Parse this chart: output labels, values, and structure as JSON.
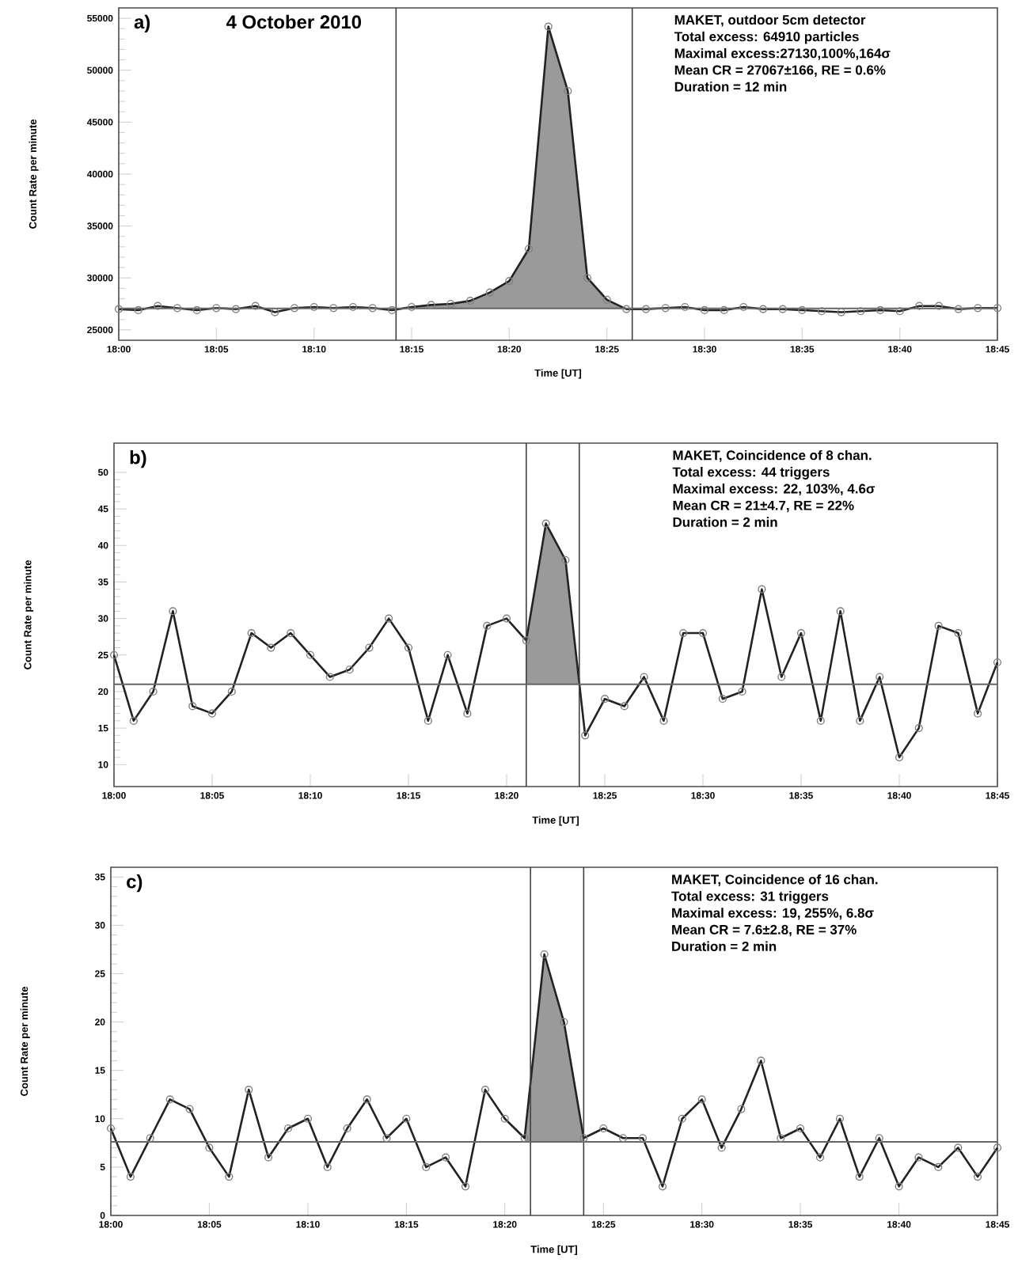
{
  "chart_data": [
    {
      "type": "line",
      "title": "a)",
      "subtitle": "4 October 2010",
      "xlabel": "Time [UT]",
      "ylabel": "Count Rate per minute",
      "annotations": [
        "MAKET, outdoor 5cm detector",
        "Total excess: 64910 particles",
        "Maximal excess:27130,100%,164σ",
        "Mean CR = 27067±166, RE = 0.6%",
        "Duration = 12 min"
      ],
      "x": [
        18,
        18.0167,
        18.0333,
        18.05,
        18.0667,
        18.0833,
        18.1,
        18.1167,
        18.1333,
        18.15,
        18.1667,
        18.1833,
        18.2,
        18.2167,
        18.2333,
        18.25,
        18.2667,
        18.2833,
        18.3,
        18.3167,
        18.3333,
        18.35,
        18.3667,
        18.3833,
        18.4,
        18.4167,
        18.4333,
        18.45,
        18.4667,
        18.4833,
        18.5,
        18.5167,
        18.5333,
        18.55,
        18.5667,
        18.5833,
        18.6,
        18.6167,
        18.6333,
        18.65,
        18.6667,
        18.6833,
        18.7,
        18.7167,
        18.7333,
        18.75
      ],
      "series": [
        {
          "type": "area",
          "color": "#9a9a9a",
          "x": [
            18.25,
            18.2667,
            18.2833,
            18.3,
            18.3167,
            18.3333,
            18.35,
            18.3667,
            18.3833,
            18.4,
            18.4167,
            18.4333
          ],
          "values": [
            27200,
            27400,
            27500,
            27800,
            28600,
            29700,
            32800,
            54200,
            48000,
            30000,
            27900,
            27000
          ]
        },
        {
          "color": "#222222",
          "values": [
            27000,
            26900,
            27300,
            27100,
            26900,
            27100,
            27000,
            27300,
            26700,
            27100,
            27200,
            27100,
            27200,
            27100,
            26900,
            27200,
            27400,
            27500,
            27800,
            28600,
            29700,
            32800,
            54200,
            48000,
            30000,
            27900,
            27000,
            27000,
            27100,
            27200,
            26900,
            26900,
            27200,
            27000,
            27000,
            26900,
            26800,
            26700,
            26800,
            26900,
            26800,
            27300,
            27300,
            27000,
            27100,
            27100
          ]
        }
      ],
      "xlim": [
        18,
        18.75
      ],
      "ylim": [
        24000,
        56000
      ],
      "xticks": [
        {
          "value": 18,
          "label": "18:00"
        },
        {
          "value": 18.0833,
          "label": "18:05"
        },
        {
          "value": 18.1667,
          "label": "18:10"
        },
        {
          "value": 18.25,
          "label": "18:15"
        },
        {
          "value": 18.3333,
          "label": "18:20"
        },
        {
          "value": 18.4167,
          "label": "18:25"
        },
        {
          "value": 18.5,
          "label": "18:30"
        },
        {
          "value": 18.5833,
          "label": "18:35"
        },
        {
          "value": 18.6667,
          "label": "18:40"
        },
        {
          "value": 18.75,
          "label": "18:45"
        }
      ],
      "yticks": [
        25000,
        30000,
        35000,
        40000,
        45000,
        50000,
        55000
      ],
      "ref_lines": [
        {
          "axis": "x",
          "value": 18.2367
        },
        {
          "axis": "x",
          "value": 18.4383
        },
        {
          "axis": "y",
          "value": 27067
        }
      ],
      "marker": "circle",
      "line_style": "solid"
    },
    {
      "type": "line",
      "title": "b)",
      "xlabel": "Time [UT]",
      "ylabel": "Count Rate per minute",
      "annotations": [
        "MAKET, Coincidence of 8 chan.",
        "Total excess: 44 triggers",
        "Maximal excess: 22, 103%, 4.6σ",
        "Mean CR = 21±4.7, RE = 22%",
        "Duration = 2 min"
      ],
      "x": [
        18,
        18.0167,
        18.0333,
        18.05,
        18.0667,
        18.0833,
        18.1,
        18.1167,
        18.1333,
        18.15,
        18.1667,
        18.1833,
        18.2,
        18.2167,
        18.2333,
        18.25,
        18.2667,
        18.2833,
        18.3,
        18.3167,
        18.3333,
        18.35,
        18.3667,
        18.3833,
        18.4,
        18.4167,
        18.4333,
        18.45,
        18.4667,
        18.4833,
        18.5,
        18.5167,
        18.5333,
        18.55,
        18.5667,
        18.5833,
        18.6,
        18.6167,
        18.6333,
        18.65,
        18.6667,
        18.6833,
        18.7,
        18.7167,
        18.7333,
        18.75
      ],
      "series": [
        {
          "type": "area",
          "color": "#9a9a9a",
          "x": [
            18.35,
            18.3667,
            18.3833,
            18.4
          ],
          "values": [
            27,
            43,
            38,
            14
          ]
        },
        {
          "color": "#222222",
          "values": [
            25,
            16,
            20,
            31,
            18,
            17,
            20,
            28,
            26,
            28,
            25,
            22,
            23,
            26,
            30,
            26,
            16,
            25,
            17,
            29,
            30,
            27,
            43,
            38,
            14,
            19,
            18,
            22,
            16,
            28,
            28,
            19,
            20,
            34,
            22,
            28,
            16,
            31,
            16,
            22,
            11,
            15,
            29,
            28,
            17,
            24
          ]
        }
      ],
      "xlim": [
        18,
        18.75
      ],
      "ylim": [
        7,
        54
      ],
      "xticks": [
        {
          "value": 18,
          "label": "18:00"
        },
        {
          "value": 18.0833,
          "label": "18:05"
        },
        {
          "value": 18.1667,
          "label": "18:10"
        },
        {
          "value": 18.25,
          "label": "18:15"
        },
        {
          "value": 18.3333,
          "label": "18:20"
        },
        {
          "value": 18.4167,
          "label": "18:25"
        },
        {
          "value": 18.5,
          "label": "18:30"
        },
        {
          "value": 18.5833,
          "label": "18:35"
        },
        {
          "value": 18.6667,
          "label": "18:40"
        },
        {
          "value": 18.75,
          "label": "18:45"
        }
      ],
      "yticks": [
        10,
        15,
        20,
        25,
        30,
        35,
        40,
        45,
        50
      ],
      "ref_lines": [
        {
          "axis": "x",
          "value": 18.35
        },
        {
          "axis": "x",
          "value": 18.395
        },
        {
          "axis": "y",
          "value": 21
        }
      ],
      "marker": "circle",
      "line_style": "solid"
    },
    {
      "type": "line",
      "title": "c)",
      "xlabel": "Time [UT]",
      "ylabel": "Count Rate per minute",
      "annotations": [
        "MAKET, Coincidence of 16 chan.",
        "Total excess: 31 triggers",
        "Maximal excess: 19, 255%, 6.8σ",
        "Mean CR = 7.6±2.8, RE = 37%",
        "Duration = 2 min"
      ],
      "x": [
        18,
        18.0167,
        18.0333,
        18.05,
        18.0667,
        18.0833,
        18.1,
        18.1167,
        18.1333,
        18.15,
        18.1667,
        18.1833,
        18.2,
        18.2167,
        18.2333,
        18.25,
        18.2667,
        18.2833,
        18.3,
        18.3167,
        18.3333,
        18.35,
        18.3667,
        18.3833,
        18.4,
        18.4167,
        18.4333,
        18.45,
        18.4667,
        18.4833,
        18.5,
        18.5167,
        18.5333,
        18.55,
        18.5667,
        18.5833,
        18.6,
        18.6167,
        18.6333,
        18.65,
        18.6667,
        18.6833,
        18.7,
        18.7167,
        18.7333,
        18.75
      ],
      "series": [
        {
          "type": "area",
          "color": "#9a9a9a",
          "x": [
            18.35,
            18.3667,
            18.3833,
            18.4
          ],
          "values": [
            8,
            27,
            20,
            8
          ]
        },
        {
          "color": "#222222",
          "values": [
            9,
            4,
            8,
            12,
            11,
            7,
            4,
            13,
            6,
            9,
            10,
            5,
            9,
            12,
            8,
            10,
            5,
            6,
            3,
            13,
            10,
            8,
            27,
            20,
            8,
            9,
            8,
            8,
            3,
            10,
            12,
            7,
            11,
            16,
            8,
            9,
            6,
            10,
            4,
            8,
            3,
            6,
            5,
            7,
            4,
            7
          ]
        }
      ],
      "xlim": [
        18,
        18.75
      ],
      "ylim": [
        0,
        36
      ],
      "xticks": [
        {
          "value": 18,
          "label": "18:00"
        },
        {
          "value": 18.0833,
          "label": "18:05"
        },
        {
          "value": 18.1667,
          "label": "18:10"
        },
        {
          "value": 18.25,
          "label": "18:15"
        },
        {
          "value": 18.3333,
          "label": "18:20"
        },
        {
          "value": 18.4167,
          "label": "18:25"
        },
        {
          "value": 18.5,
          "label": "18:30"
        },
        {
          "value": 18.5833,
          "label": "18:35"
        },
        {
          "value": 18.6667,
          "label": "18:40"
        },
        {
          "value": 18.75,
          "label": "18:45"
        }
      ],
      "yticks": [
        0,
        5,
        10,
        15,
        20,
        25,
        30,
        35
      ],
      "ref_lines": [
        {
          "axis": "x",
          "value": 18.355
        },
        {
          "axis": "x",
          "value": 18.4
        },
        {
          "axis": "y",
          "value": 7.6
        }
      ],
      "marker": "circle",
      "line_style": "solid"
    }
  ]
}
